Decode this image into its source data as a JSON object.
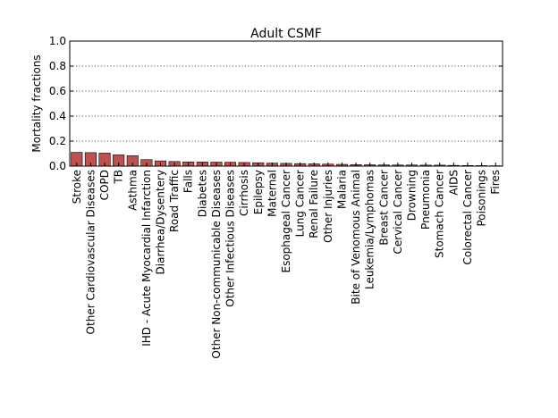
{
  "chart_data": {
    "type": "bar",
    "title": "Adult CSMF",
    "ylabel": "Mortality fractions",
    "xlabel": "",
    "ylim": [
      0,
      1.0
    ],
    "yticks": [
      "0.0",
      "0.2",
      "0.4",
      "0.6",
      "0.8",
      "1.0"
    ],
    "grid": true,
    "bar_color": "#c0504d",
    "categories": [
      "Stroke",
      "Other Cardiovascular Diseases",
      "COPD",
      "TB",
      "Asthma",
      "IHD - Acute Myocardial Infarction",
      "Diarrhea/Dysentery",
      "Road Traffic",
      "Falls",
      "Diabetes",
      "Other Non-communicable Diseases",
      "Other Infectious Diseases",
      "Cirrhosis",
      "Epilepsy",
      "Maternal",
      "Esophageal Cancer",
      "Lung Cancer",
      "Renal Failure",
      "Other Injuries",
      "Malaria",
      "Bite of Venomous Animal",
      "Leukemia/Lymphomas",
      "Breast Cancer",
      "Cervical Cancer",
      "Drowning",
      "Pneumonia",
      "Stomach Cancer",
      "AIDS",
      "Colorectal Cancer",
      "Poisonings",
      "Fires"
    ],
    "values": [
      0.11,
      0.108,
      0.104,
      0.09,
      0.083,
      0.052,
      0.042,
      0.037,
      0.034,
      0.033,
      0.032,
      0.031,
      0.029,
      0.027,
      0.024,
      0.022,
      0.02,
      0.018,
      0.016,
      0.014,
      0.012,
      0.011,
      0.01,
      0.009,
      0.009,
      0.008,
      0.008,
      0.006,
      0.005,
      0.004,
      0.003
    ]
  }
}
